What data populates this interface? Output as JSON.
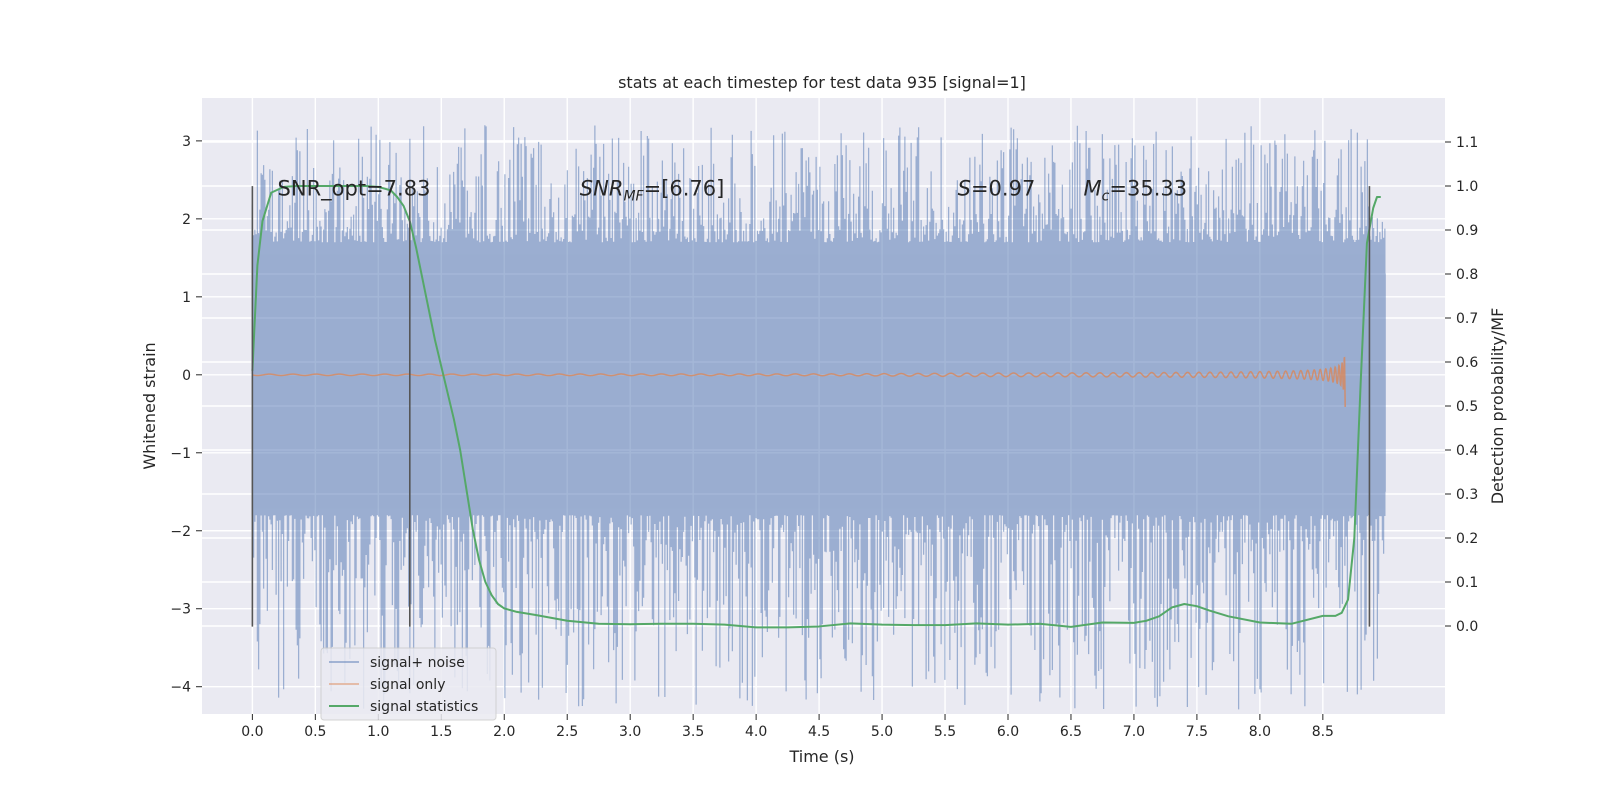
{
  "chart_data": {
    "type": "line",
    "title": "stats at each timestep for test data 935 [signal=1]",
    "xlabel": "Time (s)",
    "ylabel": "Whitened strain",
    "y2label": "Detection probability/MF",
    "xlim": [
      -0.4,
      9.47
    ],
    "ylim": [
      -4.35,
      3.55
    ],
    "y2lim": [
      -0.2,
      1.2
    ],
    "xticks": [
      "0.0",
      "0.5",
      "1.0",
      "1.5",
      "2.0",
      "2.5",
      "3.0",
      "3.5",
      "4.0",
      "4.5",
      "5.0",
      "5.5",
      "6.0",
      "6.5",
      "7.0",
      "7.5",
      "8.0",
      "8.5"
    ],
    "yticks": [
      "3",
      "2",
      "1",
      "0",
      "−1",
      "−2",
      "−3",
      "−4"
    ],
    "y2ticks": [
      "1.1",
      "1.0",
      "0.9",
      "0.8",
      "0.7",
      "0.6",
      "0.5",
      "0.4",
      "0.3",
      "0.2",
      "0.1",
      "0.0"
    ],
    "grid": true,
    "legend_position": "lower-left",
    "annotations": [
      {
        "label": "SNR_opt=7.83",
        "x": 0.2,
        "y": 2.4
      },
      {
        "label": "SNR",
        "sub": "MF",
        "rest": "=[6.76]",
        "italic_label": true,
        "x": 2.6,
        "y": 2.4
      },
      {
        "label": "S",
        "sub": "",
        "rest": "=0.97",
        "italic_label": true,
        "x": 5.6,
        "y": 2.4
      },
      {
        "label": "M",
        "sub": "c",
        "rest": "=35.33",
        "italic_label": true,
        "x": 6.6,
        "y": 2.4
      }
    ],
    "vlines": [
      {
        "x": 0.0,
        "y_from": -3.23,
        "y_to": 2.42
      },
      {
        "x": 1.25,
        "y_from": -3.23,
        "y_to": 2.42
      },
      {
        "x": 8.87,
        "y_from": -3.23,
        "y_to": 2.42
      }
    ],
    "series": [
      {
        "name": "signal+ noise",
        "color": "#4c72b0",
        "opacity": 0.5,
        "kind": "noise",
        "x_range": [
          0.0,
          9.0
        ],
        "core_band": [
          -1.5,
          1.3
        ],
        "spike_max": [
          3.2,
          -4.0
        ],
        "seed": 935
      },
      {
        "name": "signal only",
        "color": "#dd8452",
        "kind": "chirp",
        "x_range": [
          0.0,
          8.68
        ],
        "merger_time": 8.68,
        "peak_amplitude": 1.6
      },
      {
        "name": "signal statistics",
        "color": "#55a868",
        "axis": "right",
        "x": [
          0.0,
          0.04,
          0.08,
          0.15,
          0.25,
          0.35,
          0.5,
          0.7,
          0.9,
          1.0,
          1.1,
          1.15,
          1.2,
          1.25,
          1.3,
          1.35,
          1.4,
          1.45,
          1.5,
          1.55,
          1.6,
          1.65,
          1.7,
          1.75,
          1.8,
          1.85,
          1.9,
          1.95,
          2.0,
          2.1,
          2.25,
          2.5,
          2.75,
          3.0,
          3.25,
          3.5,
          3.75,
          4.0,
          4.25,
          4.5,
          4.75,
          5.0,
          5.25,
          5.5,
          5.75,
          6.0,
          6.25,
          6.5,
          6.75,
          7.0,
          7.1,
          7.2,
          7.3,
          7.4,
          7.5,
          7.6,
          7.75,
          8.0,
          8.25,
          8.5,
          8.6,
          8.65,
          8.7,
          8.75,
          8.8,
          8.85,
          8.9,
          8.93,
          8.96
        ],
        "values": [
          0.58,
          0.82,
          0.92,
          0.985,
          0.998,
          1.0,
          1.0,
          1.0,
          1.0,
          0.998,
          0.99,
          0.975,
          0.955,
          0.92,
          0.86,
          0.79,
          0.72,
          0.65,
          0.59,
          0.53,
          0.47,
          0.4,
          0.31,
          0.22,
          0.15,
          0.1,
          0.07,
          0.05,
          0.04,
          0.032,
          0.025,
          0.012,
          0.005,
          0.004,
          0.005,
          0.005,
          0.003,
          -0.003,
          -0.003,
          -0.001,
          0.006,
          0.003,
          0.002,
          0.002,
          0.006,
          0.003,
          0.005,
          -0.002,
          0.008,
          0.007,
          0.012,
          0.022,
          0.042,
          0.05,
          0.045,
          0.035,
          0.022,
          0.008,
          0.005,
          0.023,
          0.023,
          0.03,
          0.06,
          0.2,
          0.55,
          0.87,
          0.95,
          0.975,
          0.975
        ]
      }
    ]
  }
}
